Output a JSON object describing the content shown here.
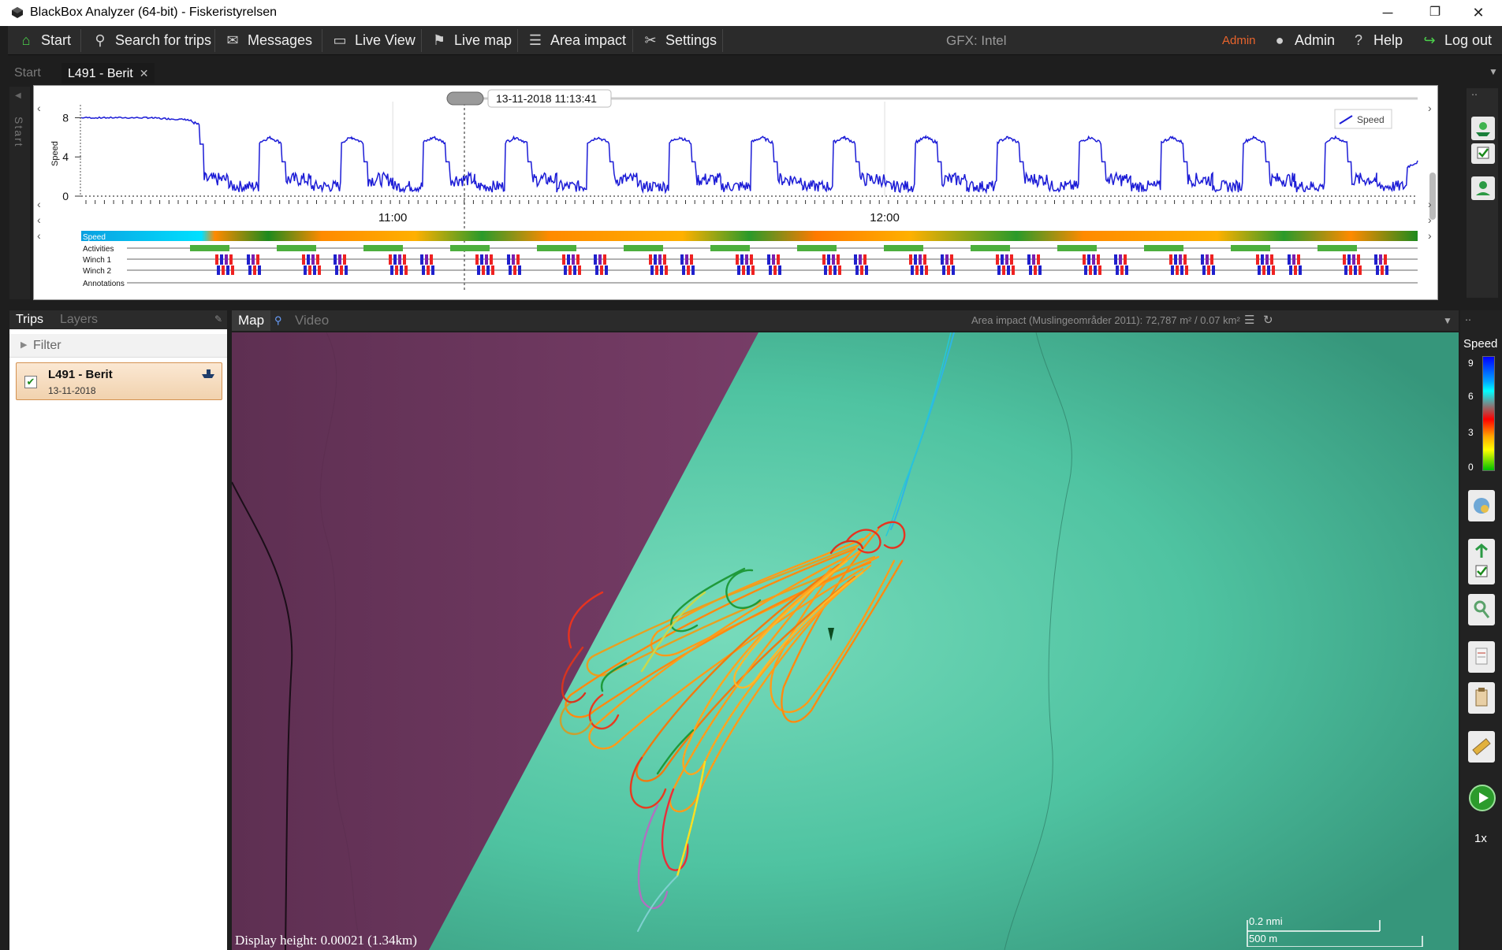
{
  "window": {
    "title": "BlackBox Analyzer (64-bit) - Fiskeristyrelsen",
    "minimize": "─",
    "restore": "❐",
    "close": "✕"
  },
  "menu": {
    "start": "Start",
    "search": "Search for trips",
    "messages": "Messages",
    "live_view": "Live View",
    "live_map": "Live map",
    "area_impact": "Area impact",
    "settings": "Settings",
    "gfx": "GFX: Intel",
    "role": "Admin",
    "user": "Admin",
    "help": "Help",
    "logout": "Log out"
  },
  "tabs": {
    "start": "Start",
    "active": "L491 - Berit"
  },
  "sidebar_vertical": "Start",
  "timeline": {
    "cursor_time": "13-11-2018 11:13:41",
    "legend": "Speed",
    "ylabel": "Speed",
    "yticks": [
      "0",
      "4",
      "8"
    ],
    "xticks": [
      "11:00",
      "12:00"
    ],
    "rows": [
      "Speed",
      "Activities",
      "Winch 1",
      "Winch 2",
      "Annotations"
    ]
  },
  "chart_data": {
    "type": "line",
    "ylabel": "Speed",
    "ylim": [
      0,
      9
    ],
    "xlabel": "",
    "series": [
      {
        "name": "Speed",
        "x": [
          "10:22",
          "10:30",
          "10:35",
          "10:40",
          "10:45",
          "10:50",
          "10:55",
          "11:00",
          "11:05",
          "11:10",
          "11:15",
          "11:20",
          "11:25",
          "11:30",
          "11:35",
          "11:40",
          "11:45",
          "11:50",
          "11:55",
          "12:00",
          "12:05",
          "12:10",
          "12:15",
          "12:20",
          "12:25",
          "12:30",
          "12:35",
          "12:40",
          "12:45",
          "12:50",
          "12:55",
          "13:00",
          "13:05"
        ],
        "values": [
          8,
          8,
          7.8,
          1,
          6,
          1,
          6,
          1,
          6,
          1,
          6,
          1,
          6,
          1,
          6,
          1,
          6,
          1,
          6,
          1,
          6,
          1,
          6,
          1,
          6,
          1,
          6,
          1,
          6,
          1,
          6,
          1,
          3.5
        ]
      }
    ]
  },
  "left_panel": {
    "tab_trips": "Trips",
    "tab_layers": "Layers",
    "filter": "Filter",
    "trip_name": "L491 - Berit",
    "trip_date": "13-11-2018"
  },
  "map": {
    "tab_map": "Map",
    "tab_video": "Video",
    "area_info": "Area impact (Muslingeområder 2011): 72,787 m² / 0.07 km²",
    "display_height": "Display height: 0.00021 (1.34km)",
    "scale_top": "0.2 nmi",
    "scale_bottom": "500 m",
    "colors": {
      "land": "#6f3a62",
      "sea": "#4fc3a1",
      "sea_light": "#77dbbb",
      "sea_dark": "#36967b"
    }
  },
  "speed_legend": {
    "title": "Speed",
    "ticks": [
      "9",
      "6",
      "3",
      "0"
    ]
  },
  "playback": {
    "speed": "1x"
  }
}
